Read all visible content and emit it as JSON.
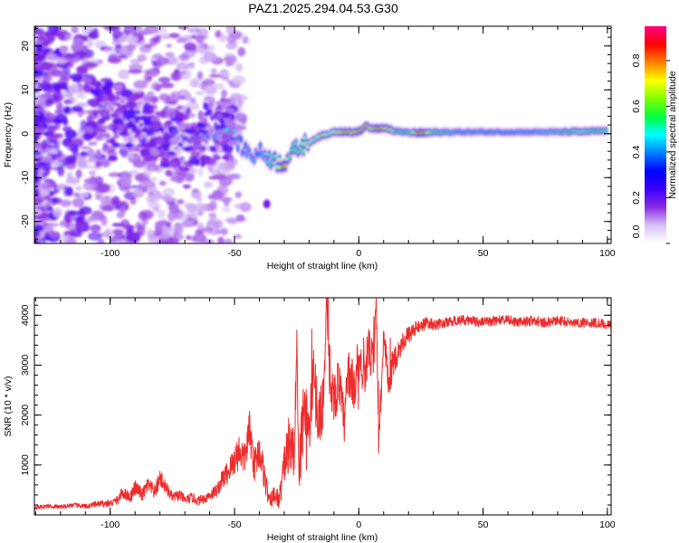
{
  "figure_title": "PAZ1.2025.294.04.53.G30",
  "chart_data": [
    {
      "type": "heatmap",
      "name": "spectrogram",
      "title": "PAZ1.2025.294.04.53.G30",
      "xlabel": "Height of straight line (km)",
      "ylabel": "Frequency (Hz)",
      "xlim": [
        -130.5,
        101.5
      ],
      "ylim": [
        -25,
        24.5
      ],
      "xticks": [
        -100,
        -50,
        0,
        50,
        100
      ],
      "xtick_labels": [
        "-100",
        "-50",
        "0",
        "50",
        "100"
      ],
      "yticks": [
        -20,
        -10,
        0,
        10,
        20
      ],
      "ytick_labels": [
        "-20",
        "-10",
        "0",
        "10",
        "20"
      ],
      "colorbar": {
        "label": "Normalized spectral amplitude",
        "range": [
          0.0,
          0.95
        ],
        "ticks": [
          0.0,
          0.2,
          0.4,
          0.6,
          0.8
        ],
        "tick_labels": [
          "0.0",
          "0.2",
          "0.4",
          "0.6",
          "0.8"
        ],
        "colormap": [
          "#ffffff",
          "#d9c2f7",
          "#8a2be2",
          "#3b00ff",
          "#0000ff",
          "#0080ff",
          "#00ffff",
          "#00ff40",
          "#80ff00",
          "#ffff00",
          "#ff8000",
          "#ff0000",
          "#ff0080"
        ]
      },
      "ridge": {
        "description": "Dominant frequency track vs height",
        "x": [
          -105,
          -100,
          -95,
          -90,
          -85,
          -80,
          -75,
          -70,
          -65,
          -60,
          -55,
          -52,
          -50,
          -47,
          -45,
          -42,
          -40,
          -37,
          -35,
          -32,
          -30,
          -27,
          -25,
          -22,
          -20,
          -17,
          -15,
          -12,
          -10,
          -7,
          -5,
          -2,
          0,
          3,
          5,
          8,
          10,
          13,
          15,
          20,
          25,
          30,
          40,
          50,
          60,
          70,
          80,
          90,
          95,
          100
        ],
        "frequency": [
          6,
          5,
          3,
          2,
          0.5,
          0,
          -1,
          -1.5,
          -1,
          0,
          1,
          0.5,
          -1,
          -3,
          -4,
          -5,
          -4,
          -5,
          -6,
          -6.5,
          -6.5,
          -4.5,
          -3.5,
          -2.5,
          -2,
          -1,
          -0.5,
          0,
          0.5,
          0.5,
          0.5,
          0.3,
          0.5,
          1.8,
          1.2,
          1.2,
          1.2,
          1.0,
          0.5,
          0.3,
          0.2,
          0.3,
          0.4,
          0.4,
          0.4,
          0.4,
          0.4,
          0.5,
          0.6,
          0.6
        ],
        "amplitude": [
          0.2,
          0.22,
          0.25,
          0.22,
          0.25,
          0.25,
          0.3,
          0.28,
          0.3,
          0.4,
          0.45,
          0.55,
          0.45,
          0.4,
          0.42,
          0.45,
          0.4,
          0.5,
          0.55,
          0.7,
          0.85,
          0.55,
          0.6,
          0.65,
          0.7,
          0.65,
          0.75,
          0.65,
          0.7,
          0.75,
          0.8,
          0.75,
          0.8,
          0.8,
          0.72,
          0.85,
          0.75,
          0.75,
          0.55,
          0.55,
          0.9,
          0.6,
          0.45,
          0.45,
          0.45,
          0.45,
          0.5,
          0.65,
          0.55,
          0.6
        ]
      },
      "isolated_features": [
        {
          "x": -37,
          "frequency": -16,
          "amplitude": 0.18
        }
      ]
    },
    {
      "type": "line",
      "name": "snr",
      "xlabel": "Height of straight line (km)",
      "ylabel": "SNR (10 * v/v)",
      "xlim": [
        -130.5,
        101.5
      ],
      "ylim": [
        0,
        4350
      ],
      "xticks": [
        -100,
        -50,
        0,
        50,
        100
      ],
      "xtick_labels": [
        "-100",
        "-50",
        "0",
        "50",
        "100"
      ],
      "yticks": [
        1000,
        2000,
        3000,
        4000
      ],
      "ytick_labels": [
        "1000",
        "2000",
        "3000",
        "4000"
      ],
      "line_color": "#ee2c2c",
      "series": [
        {
          "name": "SNR",
          "x": [
            -130,
            -125,
            -120,
            -115,
            -110,
            -105,
            -100,
            -97,
            -95,
            -92,
            -90,
            -87,
            -85,
            -82,
            -80,
            -77,
            -75,
            -72,
            -70,
            -67,
            -65,
            -62,
            -60,
            -57,
            -55,
            -52,
            -50,
            -48,
            -46,
            -44,
            -42,
            -40,
            -38,
            -36,
            -34,
            -32,
            -30,
            -28,
            -26,
            -25,
            -24,
            -22,
            -20,
            -18,
            -16,
            -14,
            -13,
            -12,
            -10,
            -8,
            -6,
            -4,
            -2,
            0,
            2,
            4,
            6,
            7,
            8,
            10,
            12,
            14,
            16,
            18,
            20,
            22,
            25,
            28,
            30,
            35,
            40,
            45,
            50,
            55,
            60,
            65,
            70,
            75,
            80,
            85,
            90,
            95,
            100,
            101
          ],
          "y": [
            150,
            180,
            160,
            200,
            170,
            220,
            230,
            300,
            450,
            350,
            550,
            400,
            600,
            450,
            750,
            500,
            350,
            400,
            300,
            350,
            280,
            330,
            400,
            500,
            700,
            900,
            1100,
            1300,
            1100,
            1700,
            1000,
            1300,
            800,
            250,
            400,
            300,
            1000,
            1500,
            1200,
            3200,
            900,
            2300,
            1600,
            2800,
            1800,
            2500,
            4200,
            3000,
            2300,
            2700,
            1800,
            2900,
            2500,
            3200,
            2800,
            3300,
            3000,
            4300,
            1500,
            3500,
            2600,
            3100,
            3300,
            3500,
            3600,
            3700,
            3800,
            3850,
            3800,
            3850,
            3900,
            3900,
            3850,
            3900,
            3900,
            3850,
            3900,
            3850,
            3900,
            3850,
            3850,
            3850,
            3800,
            3800
          ],
          "noise_amplitude": [
            40,
            40,
            40,
            45,
            50,
            60,
            70,
            90,
            120,
            110,
            150,
            130,
            160,
            140,
            180,
            130,
            100,
            110,
            90,
            100,
            90,
            100,
            110,
            140,
            200,
            260,
            320,
            380,
            320,
            400,
            350,
            350,
            300,
            150,
            200,
            200,
            400,
            600,
            500,
            500,
            500,
            700,
            600,
            700,
            600,
            600,
            500,
            600,
            500,
            500,
            500,
            500,
            500,
            500,
            450,
            450,
            450,
            300,
            450,
            400,
            350,
            300,
            250,
            200,
            180,
            150,
            130,
            120,
            110,
            100,
            100,
            100,
            100,
            100,
            100,
            100,
            100,
            100,
            100,
            100,
            100,
            100,
            100,
            100
          ]
        }
      ]
    }
  ]
}
